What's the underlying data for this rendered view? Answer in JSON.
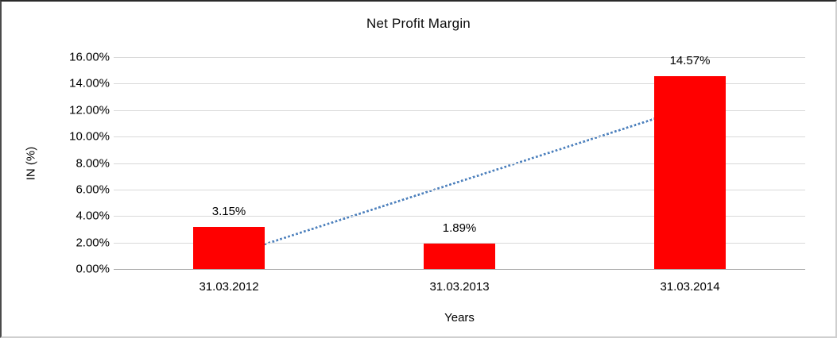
{
  "chart_data": {
    "type": "bar",
    "title": "Net Profit Margin",
    "xlabel": "Years",
    "ylabel": "IN (%)",
    "categories": [
      "31.03.2012",
      "31.03.2013",
      "31.03.2014"
    ],
    "series": [
      {
        "name": "Net Profit Margin",
        "values": [
          3.15,
          1.89,
          14.57
        ],
        "data_labels": [
          "3.15%",
          "1.89%",
          "14.57%"
        ],
        "color": "#FF0000"
      }
    ],
    "ylim": [
      0,
      16
    ],
    "ytick_step": 2,
    "ytick_labels": [
      "0.00%",
      "2.00%",
      "4.00%",
      "6.00%",
      "8.00%",
      "10.00%",
      "12.00%",
      "14.00%",
      "16.00%"
    ],
    "grid": "horizontal",
    "gridline_color": "#D9D9D9",
    "axis_line_color": "#A6A6A6",
    "legend": "none",
    "trendline": {
      "type": "linear",
      "style": "dotted",
      "color": "#4E81BD",
      "start_value": 1.0,
      "end_value": 12.2
    }
  }
}
